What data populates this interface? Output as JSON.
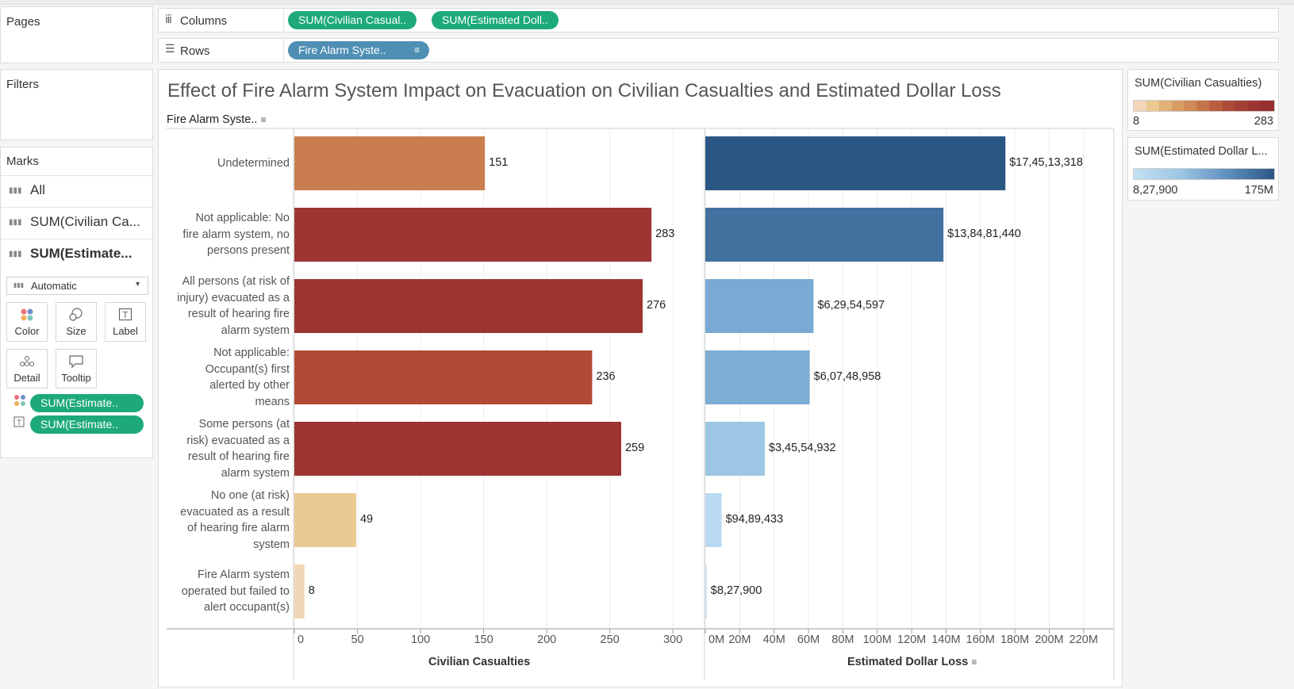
{
  "pages_title": "Pages",
  "filters_title": "Filters",
  "marks": {
    "title": "Marks",
    "rows": [
      "All",
      "SUM(Civilian Ca...",
      "SUM(Estimate..."
    ],
    "mark_type": "Automatic",
    "cards": [
      "Color",
      "Size",
      "Label",
      "Detail",
      "Tooltip"
    ],
    "pills": [
      "SUM(Estimate..",
      "SUM(Estimate.."
    ]
  },
  "shelves": {
    "columns_label": "Columns",
    "columns_pills": [
      "SUM(Civilian Casual..",
      "SUM(Estimated Doll.."
    ],
    "rows_label": "Rows",
    "rows_pills": [
      "Fire Alarm Syste.."
    ]
  },
  "view": {
    "title": "Effect of  Fire Alarm System Impact on Evacuation on Civilian Casualties and Estimated Dollar Loss",
    "row_header": "Fire Alarm Syste..",
    "x1_label": "Civilian Casualties",
    "x2_label": "Estimated Dollar Loss"
  },
  "legends": {
    "casualties": {
      "title": "SUM(Civilian Casualties)",
      "min": "8",
      "max": "283"
    },
    "dollar": {
      "title": "SUM(Estimated Dollar L...",
      "min": "8,27,900",
      "max": "175M"
    }
  },
  "chart_data": {
    "type": "bar",
    "categories": [
      "Undetermined",
      "Not applicable: No fire alarm system, no persons present",
      "All persons (at risk of injury) evacuated as a result of hearing fire alarm system",
      "Not applicable: Occupant(s) first alerted by other means",
      "Some persons (at risk) evacuated as a result of hearing fire alarm system",
      "No one (at risk) evacuated as a result of hearing fire alarm system",
      "Fire Alarm system operated but failed to alert occupant(s)"
    ],
    "category_lines": [
      [
        "Undetermined"
      ],
      [
        "Not applicable: No",
        "fire alarm system, no",
        "persons present"
      ],
      [
        "All persons (at risk of",
        "injury) evacuated as a",
        "result of hearing fire",
        "alarm system"
      ],
      [
        "Not applicable:",
        "Occupant(s) first",
        "alerted by other",
        "means"
      ],
      [
        "Some persons (at",
        "risk) evacuated as a",
        "result of hearing fire",
        "alarm system"
      ],
      [
        "No one (at risk)",
        "evacuated as a result",
        "of hearing fire alarm",
        "system"
      ],
      [
        "Fire Alarm system",
        "operated but failed to",
        "alert occupant(s)"
      ]
    ],
    "series": [
      {
        "name": "Civilian Casualties",
        "values": [
          151,
          283,
          276,
          236,
          259,
          49,
          8
        ],
        "labels": [
          "151",
          "283",
          "276",
          "236",
          "259",
          "49",
          "8"
        ],
        "colors": [
          "#ca7e4f",
          "#9d3533",
          "#9c3432",
          "#b04a36",
          "#9c3432",
          "#ebc992",
          "#f2d7b7"
        ],
        "xlim": [
          0,
          320
        ],
        "ticks": [
          0,
          50,
          100,
          150,
          200,
          250,
          300
        ],
        "tick_labels": [
          "0",
          "50",
          "100",
          "150",
          "200",
          "250",
          "300"
        ]
      },
      {
        "name": "Estimated Dollar Loss",
        "values": [
          174513318,
          138481440,
          62954597,
          60748958,
          34554932,
          9489433,
          827900
        ],
        "labels": [
          "$17,45,13,318",
          "$13,84,81,440",
          "$6,29,54,597",
          "$6,07,48,958",
          "$3,45,54,932",
          "$94,89,433",
          "$8,27,900"
        ],
        "colors": [
          "#2b5784",
          "#41719f",
          "#7aaad4",
          "#7dacd4",
          "#9cc6e4",
          "#b9daf0",
          "#c6e0f2"
        ],
        "xlim": [
          0,
          233000000
        ],
        "ticks": [
          0,
          20000000,
          40000000,
          60000000,
          80000000,
          100000000,
          120000000,
          140000000,
          160000000,
          180000000,
          200000000,
          220000000
        ],
        "tick_labels": [
          "0M",
          "20M",
          "40M",
          "60M",
          "80M",
          "100M",
          "120M",
          "140M",
          "160M",
          "180M",
          "200M",
          "220M"
        ]
      }
    ],
    "grid": true
  }
}
